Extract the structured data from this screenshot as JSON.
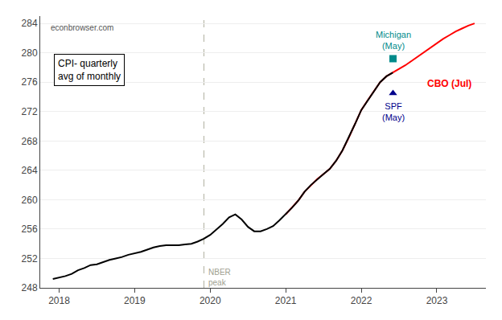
{
  "chart_data": {
    "type": "line",
    "watermark": "econbrowser.com",
    "text_box": "CPI- quarterly\navg of monthly",
    "xlim": [
      2017.75,
      2023.65
    ],
    "ylim": [
      248,
      285
    ],
    "xticks": [
      2018,
      2019,
      2020,
      2021,
      2022,
      2023
    ],
    "yticks": [
      248,
      252,
      256,
      260,
      264,
      268,
      272,
      276,
      280,
      284
    ],
    "grid": "y",
    "series": [
      {
        "type": "line",
        "color": "#ff0000",
        "x": [
          2021.0,
          2021.083,
          2021.167,
          2021.25,
          2021.333,
          2021.417,
          2021.5,
          2021.583,
          2021.667,
          2021.75,
          2021.833,
          2021.917,
          2022.0,
          2022.083,
          2022.167,
          2022.25,
          2022.333,
          2022.417,
          2022.5,
          2022.583,
          2022.667,
          2022.75,
          2022.833,
          2022.917,
          2023.0,
          2023.083,
          2023.167,
          2023.25,
          2023.333,
          2023.417,
          2023.5
        ],
        "values": [
          258.0,
          258.9,
          259.9,
          261.1,
          262.0,
          262.8,
          263.5,
          264.2,
          265.3,
          266.7,
          268.4,
          270.3,
          272.2,
          273.5,
          274.8,
          276.0,
          276.8,
          277.3,
          277.8,
          278.3,
          278.9,
          279.5,
          280.1,
          280.7,
          281.3,
          281.9,
          282.4,
          282.9,
          283.3,
          283.7,
          284.0
        ]
      },
      {
        "type": "line",
        "color": "#000000",
        "x": [
          2017.917,
          2018.0,
          2018.083,
          2018.167,
          2018.25,
          2018.333,
          2018.417,
          2018.5,
          2018.583,
          2018.667,
          2018.75,
          2018.833,
          2018.917,
          2019.0,
          2019.083,
          2019.167,
          2019.25,
          2019.333,
          2019.417,
          2019.5,
          2019.583,
          2019.667,
          2019.75,
          2019.833,
          2019.917,
          2020.0,
          2020.083,
          2020.167,
          2020.25,
          2020.333,
          2020.417,
          2020.5,
          2020.583,
          2020.667,
          2020.75,
          2020.833,
          2020.917,
          2021.0,
          2021.083,
          2021.167,
          2021.25,
          2021.333,
          2021.417,
          2021.5,
          2021.583,
          2021.667,
          2021.75,
          2021.833,
          2021.917,
          2022.0,
          2022.083,
          2022.167,
          2022.25,
          2022.333,
          2022.417
        ],
        "values": [
          249.2,
          249.4,
          249.6,
          249.9,
          250.4,
          250.7,
          251.1,
          251.2,
          251.5,
          251.8,
          252.0,
          252.2,
          252.5,
          252.7,
          252.9,
          253.2,
          253.5,
          253.7,
          253.8,
          253.8,
          253.8,
          253.9,
          254.0,
          254.3,
          254.7,
          255.2,
          255.9,
          256.7,
          257.6,
          258.0,
          257.3,
          256.3,
          255.7,
          255.7,
          256.0,
          256.4,
          257.2,
          258.0,
          258.9,
          259.9,
          261.1,
          262.0,
          262.8,
          263.5,
          264.2,
          265.3,
          266.7,
          268.4,
          270.3,
          272.2,
          273.5,
          274.8,
          276.0,
          276.8,
          277.3
        ]
      },
      {
        "type": "scatter",
        "marker": "square",
        "color": "#008B8B",
        "label": "Michigan\n(May)",
        "x": [
          2022.42
        ],
        "values": [
          279.2
        ]
      },
      {
        "type": "scatter",
        "marker": "triangle-up",
        "color": "#00008B",
        "label": "SPF\n(May)",
        "x": [
          2022.42
        ],
        "values": [
          274.5
        ]
      }
    ],
    "annotations": [
      {
        "text": "CBO (Jul)",
        "x": 2022.85,
        "y": 275.8,
        "color": "#ff0000"
      }
    ],
    "vline": {
      "x": 2019.917,
      "color": "#b0b0a0",
      "label": "NBER\npeak",
      "label_y": 251,
      "label_color": "#a0a090"
    }
  }
}
